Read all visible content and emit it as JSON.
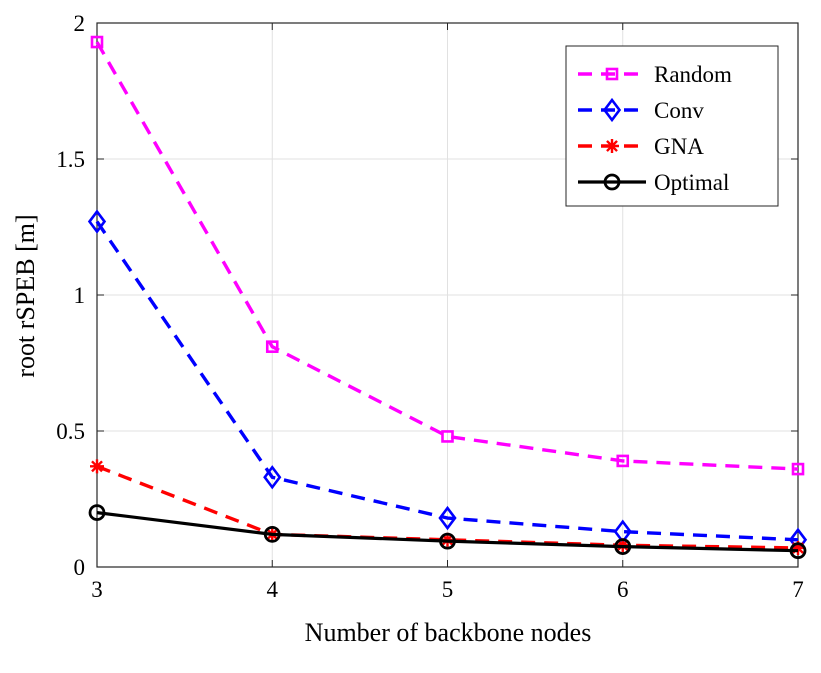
{
  "chart_data": {
    "type": "line",
    "x": [
      3,
      4,
      5,
      6,
      7
    ],
    "xlabel": "Number of backbone nodes",
    "ylabel": "root rSPEB [m]",
    "xlim": [
      3,
      7
    ],
    "ylim": [
      0,
      2
    ],
    "xticks": [
      3,
      4,
      5,
      6,
      7
    ],
    "yticks": [
      0,
      0.5,
      1,
      1.5,
      2
    ],
    "xtick_labels": [
      "3",
      "4",
      "5",
      "6",
      "7"
    ],
    "ytick_labels": [
      "0",
      "0.5",
      "1",
      "1.5",
      "2"
    ],
    "grid": true,
    "legend_position": "top-right",
    "series": [
      {
        "name": "Random",
        "values": [
          1.93,
          0.81,
          0.48,
          0.39,
          0.36
        ],
        "color": "#ff00ff",
        "marker": "square",
        "linestyle": "dashed"
      },
      {
        "name": "Conv",
        "values": [
          1.27,
          0.33,
          0.18,
          0.13,
          0.1
        ],
        "color": "#0000ff",
        "marker": "diamond",
        "linestyle": "dashed"
      },
      {
        "name": "GNA",
        "values": [
          0.37,
          0.12,
          0.1,
          0.08,
          0.07
        ],
        "color": "#ff0000",
        "marker": "asterisk",
        "linestyle": "dashed"
      },
      {
        "name": "Optimal",
        "values": [
          0.2,
          0.12,
          0.095,
          0.075,
          0.06
        ],
        "color": "#000000",
        "marker": "circle",
        "linestyle": "solid"
      }
    ]
  }
}
